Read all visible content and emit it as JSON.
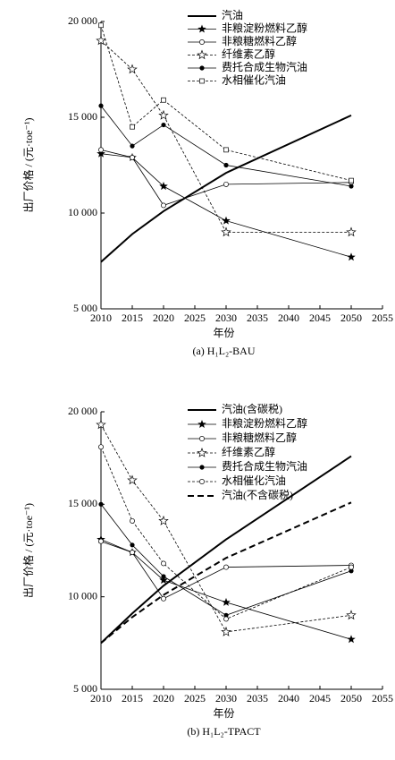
{
  "chart_data": [
    {
      "type": "line",
      "caption": "(a) H₁L₂-BAU",
      "x_label": "年份",
      "y_label": "出厂价格 / (元·toe⁻¹)",
      "x": [
        2010,
        2015,
        2020,
        2030,
        2050
      ],
      "xlim": [
        2010,
        2055
      ],
      "xticks": [
        2010,
        2015,
        2020,
        2025,
        2030,
        2035,
        2040,
        2045,
        2050,
        2055
      ],
      "ylim": [
        5000,
        20000
      ],
      "yticks": [
        {
          "value": 5000,
          "label": "5 000"
        },
        {
          "value": 10000,
          "label": "10 000"
        },
        {
          "value": 15000,
          "label": "15 000"
        },
        {
          "value": 20000,
          "label": "20 000"
        }
      ],
      "series": [
        {
          "name": "汽油",
          "color": "#000000",
          "width": 2,
          "dash": false,
          "marker": "none",
          "values": [
            7450,
            8900,
            10100,
            12100,
            15100
          ]
        },
        {
          "name": "非粮淀粉燃料乙醇",
          "color": "#000000",
          "width": 0.8,
          "dash": false,
          "marker": "star-filled",
          "values": [
            13100,
            12900,
            11400,
            9600,
            7700
          ]
        },
        {
          "name": "非粮糖燃料乙醇",
          "color": "#000000",
          "width": 0.8,
          "dash": false,
          "marker": "circle-open",
          "values": [
            13300,
            12900,
            10400,
            11500,
            11600
          ]
        },
        {
          "name": "纤维素乙醇",
          "color": "#000000",
          "width": 0.8,
          "dash": true,
          "marker": "star-open",
          "values": [
            19000,
            17500,
            15100,
            9000,
            9000
          ]
        },
        {
          "name": "费托合成生物汽油",
          "color": "#000000",
          "width": 0.8,
          "dash": false,
          "marker": "circle-filled",
          "values": [
            15600,
            13500,
            14600,
            12500,
            11400
          ]
        },
        {
          "name": "水相催化汽油",
          "color": "#000000",
          "width": 0.8,
          "dash": true,
          "marker": "square-open",
          "values": [
            19800,
            14500,
            15900,
            13300,
            11700
          ]
        }
      ]
    },
    {
      "type": "line",
      "caption": "(b) H₁L₂-TPACT",
      "x_label": "年份",
      "y_label": "出厂价格 / (元·toe⁻¹)",
      "x": [
        2010,
        2015,
        2020,
        2030,
        2050
      ],
      "xlim": [
        2010,
        2055
      ],
      "xticks": [
        2010,
        2015,
        2020,
        2025,
        2030,
        2035,
        2040,
        2045,
        2050,
        2055
      ],
      "ylim": [
        5000,
        20000
      ],
      "yticks": [
        {
          "value": 5000,
          "label": "5 000"
        },
        {
          "value": 10000,
          "label": "10 000"
        },
        {
          "value": 15000,
          "label": "15 000"
        },
        {
          "value": 20000,
          "label": "20 000"
        }
      ],
      "series": [
        {
          "name": "汽油(含碳税)",
          "color": "#000000",
          "width": 2,
          "dash": false,
          "marker": "none",
          "values": [
            7500,
            9100,
            10600,
            13100,
            17600
          ]
        },
        {
          "name": "非粮淀粉燃料乙醇",
          "color": "#000000",
          "width": 0.8,
          "dash": false,
          "marker": "star-filled",
          "values": [
            13100,
            12400,
            10900,
            9700,
            7700
          ]
        },
        {
          "name": "非粮糖燃料乙醇",
          "color": "#000000",
          "width": 0.8,
          "dash": false,
          "marker": "circle-open",
          "values": [
            13000,
            12400,
            9900,
            11600,
            11700
          ]
        },
        {
          "name": "纤维素乙醇",
          "color": "#000000",
          "width": 0.8,
          "dash": true,
          "marker": "star-open",
          "values": [
            19300,
            16300,
            14100,
            8100,
            9000
          ]
        },
        {
          "name": "费托合成生物汽油",
          "color": "#000000",
          "width": 0.8,
          "dash": false,
          "marker": "circle-filled",
          "values": [
            15000,
            12800,
            11100,
            9000,
            11400
          ]
        },
        {
          "name": "水相催化汽油",
          "color": "#000000",
          "width": 0.8,
          "dash": true,
          "marker": "circle-open",
          "values": [
            18100,
            14100,
            11800,
            8800,
            11600
          ]
        },
        {
          "name": "汽油(不含碳税)",
          "color": "#000000",
          "width": 2,
          "dash": true,
          "marker": "none",
          "values": [
            7500,
            8900,
            10100,
            12100,
            15100
          ]
        }
      ]
    }
  ]
}
